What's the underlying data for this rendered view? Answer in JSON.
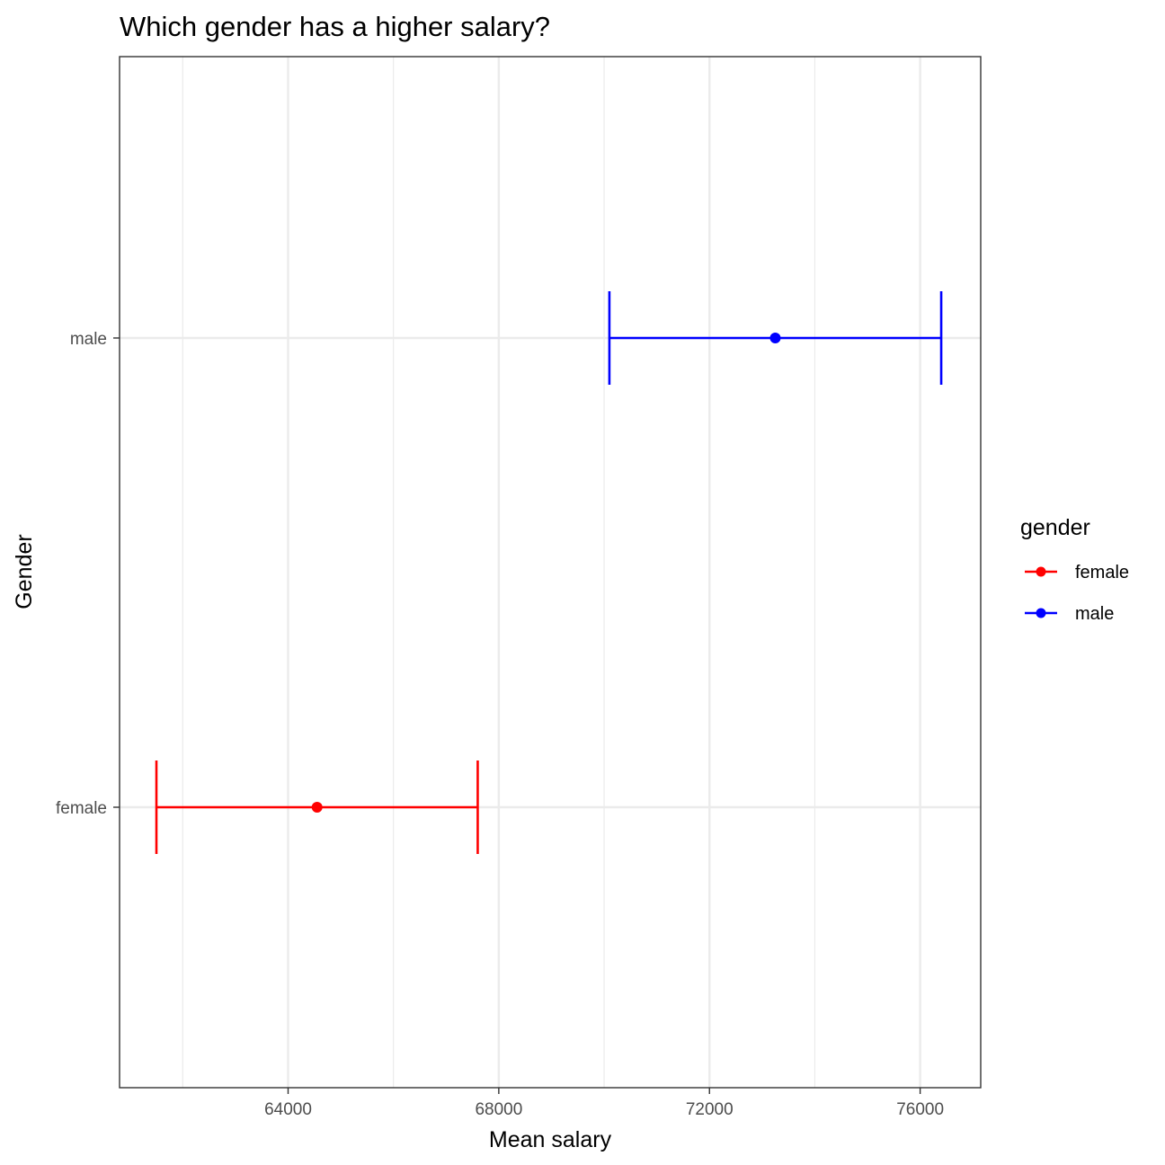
{
  "chart_data": {
    "type": "errorbar",
    "title": "Which gender has a higher salary?",
    "xlabel": "Mean salary",
    "ylabel": "Gender",
    "xlim": [
      60800,
      77150
    ],
    "x_major_ticks": [
      64000,
      68000,
      72000,
      76000
    ],
    "x_minor_ticks": [
      62000,
      66000,
      70000,
      74000
    ],
    "x_tick_labels": [
      "64000",
      "68000",
      "72000",
      "76000"
    ],
    "categories": [
      "female",
      "male"
    ],
    "grid": true,
    "legend": {
      "title": "gender",
      "position": "right",
      "entries": [
        "female",
        "male"
      ]
    },
    "series": [
      {
        "name": "female",
        "color": "#ff0000",
        "mean": 64550,
        "lower": 61500,
        "upper": 67600
      },
      {
        "name": "male",
        "color": "#0000ff",
        "mean": 73250,
        "lower": 70100,
        "upper": 76400
      }
    ]
  }
}
